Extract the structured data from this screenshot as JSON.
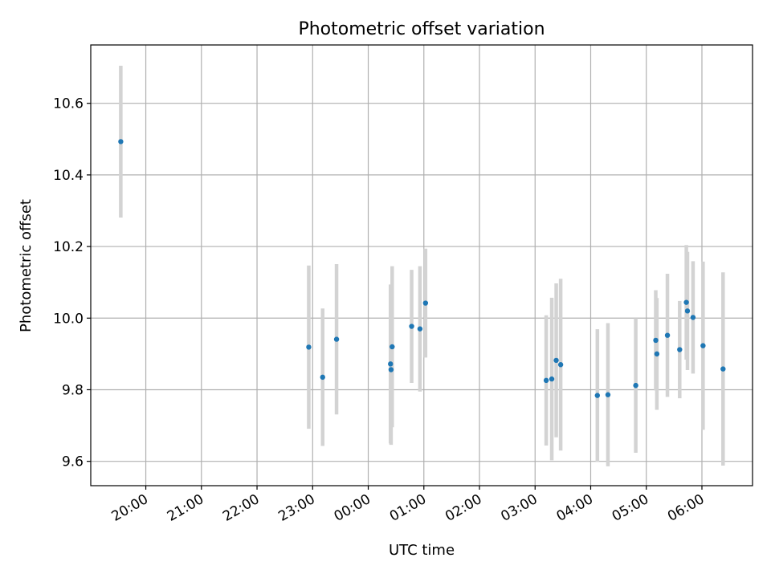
{
  "chart_data": {
    "type": "scatter",
    "title": "Photometric offset variation",
    "xlabel": "UTC time",
    "ylabel": "Photometric offset",
    "x_ticks": [
      {
        "hour": 20,
        "label": "20:00"
      },
      {
        "hour": 21,
        "label": "21:00"
      },
      {
        "hour": 22,
        "label": "22:00"
      },
      {
        "hour": 23,
        "label": "23:00"
      },
      {
        "hour": 24,
        "label": "00:00"
      },
      {
        "hour": 25,
        "label": "01:00"
      },
      {
        "hour": 26,
        "label": "02:00"
      },
      {
        "hour": 27,
        "label": "03:00"
      },
      {
        "hour": 28,
        "label": "04:00"
      },
      {
        "hour": 29,
        "label": "05:00"
      },
      {
        "hour": 30,
        "label": "06:00"
      }
    ],
    "y_ticks": [
      {
        "value": 9.6,
        "label": "9.6"
      },
      {
        "value": 9.8,
        "label": "9.8"
      },
      {
        "value": 10.0,
        "label": "10.0"
      },
      {
        "value": 10.2,
        "label": "10.2"
      },
      {
        "value": 10.4,
        "label": "10.4"
      },
      {
        "value": 10.6,
        "label": "10.6"
      }
    ],
    "xlim": [
      19.01,
      30.91
    ],
    "ylim": [
      9.532,
      10.763
    ],
    "grid": true,
    "colors": {
      "point": "#1f77b4",
      "errorbar": "#d3d3d3"
    },
    "points": [
      {
        "x": 19.55,
        "y": 10.493,
        "err": 0.212
      },
      {
        "x": 22.93,
        "y": 9.919,
        "err": 0.228
      },
      {
        "x": 23.18,
        "y": 9.835,
        "err": 0.192
      },
      {
        "x": 23.43,
        "y": 9.941,
        "err": 0.21
      },
      {
        "x": 24.4,
        "y": 9.872,
        "err": 0.222
      },
      {
        "x": 24.41,
        "y": 9.856,
        "err": 0.21
      },
      {
        "x": 24.43,
        "y": 9.92,
        "err": 0.225
      },
      {
        "x": 24.78,
        "y": 9.977,
        "err": 0.158
      },
      {
        "x": 24.93,
        "y": 9.97,
        "err": 0.175
      },
      {
        "x": 25.03,
        "y": 10.042,
        "err": 0.152
      },
      {
        "x": 27.2,
        "y": 9.826,
        "err": 0.182
      },
      {
        "x": 27.3,
        "y": 9.83,
        "err": 0.227
      },
      {
        "x": 27.38,
        "y": 9.882,
        "err": 0.215
      },
      {
        "x": 27.46,
        "y": 9.87,
        "err": 0.24
      },
      {
        "x": 28.12,
        "y": 9.784,
        "err": 0.185
      },
      {
        "x": 28.31,
        "y": 9.786,
        "err": 0.2
      },
      {
        "x": 28.81,
        "y": 9.812,
        "err": 0.188
      },
      {
        "x": 29.17,
        "y": 9.938,
        "err": 0.14
      },
      {
        "x": 29.19,
        "y": 9.9,
        "err": 0.156
      },
      {
        "x": 29.38,
        "y": 9.952,
        "err": 0.172
      },
      {
        "x": 29.6,
        "y": 9.912,
        "err": 0.136
      },
      {
        "x": 29.72,
        "y": 10.044,
        "err": 0.16
      },
      {
        "x": 29.74,
        "y": 10.02,
        "err": 0.165
      },
      {
        "x": 29.84,
        "y": 10.002,
        "err": 0.157
      },
      {
        "x": 30.02,
        "y": 9.923,
        "err": 0.235
      },
      {
        "x": 30.38,
        "y": 9.858,
        "err": 0.27
      }
    ]
  }
}
